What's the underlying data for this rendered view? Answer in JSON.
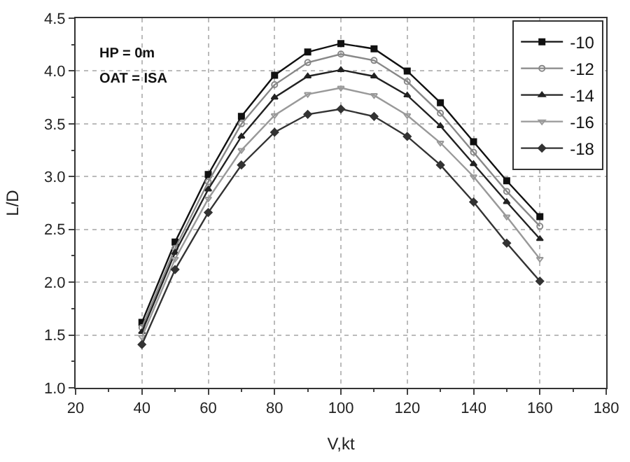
{
  "chart_data": {
    "type": "line",
    "xlabel": "V,kt",
    "ylabel": "L/D",
    "x": [
      40,
      50,
      60,
      70,
      80,
      90,
      100,
      110,
      120,
      130,
      140,
      150,
      160
    ],
    "series": [
      {
        "name": "-10",
        "color": "#111111",
        "marker": "square",
        "values": [
          1.62,
          2.38,
          3.02,
          3.57,
          3.96,
          4.18,
          4.26,
          4.21,
          4.0,
          3.7,
          3.33,
          2.96,
          2.62
        ]
      },
      {
        "name": "-12",
        "color": "#888888",
        "marker": "circle",
        "values": [
          1.57,
          2.32,
          2.95,
          3.5,
          3.87,
          4.08,
          4.16,
          4.1,
          3.9,
          3.6,
          3.23,
          2.86,
          2.53
        ]
      },
      {
        "name": "-14",
        "color": "#222222",
        "marker": "triangle",
        "values": [
          1.53,
          2.28,
          2.88,
          3.38,
          3.75,
          3.95,
          4.01,
          3.95,
          3.77,
          3.48,
          3.12,
          2.76,
          2.41
        ]
      },
      {
        "name": "-16",
        "color": "#999999",
        "marker": "triangle",
        "values": [
          1.48,
          2.22,
          2.79,
          3.25,
          3.58,
          3.78,
          3.84,
          3.77,
          3.58,
          3.32,
          3.0,
          2.62,
          2.22
        ]
      },
      {
        "name": "-18",
        "color": "#333333",
        "marker": "diamond",
        "values": [
          1.41,
          2.12,
          2.66,
          3.11,
          3.42,
          3.59,
          3.64,
          3.57,
          3.38,
          3.11,
          2.76,
          2.37,
          2.01
        ]
      }
    ],
    "annotations": [
      "HP = 0m",
      "OAT = ISA"
    ],
    "xlim": [
      20,
      180
    ],
    "xticks": [
      20,
      40,
      60,
      80,
      100,
      120,
      140,
      160,
      180
    ],
    "ylim": [
      1.0,
      4.5
    ],
    "yticks": [
      {
        "value": 1.0,
        "label": "1.0"
      },
      {
        "value": 1.5,
        "label": "1.5"
      },
      {
        "value": 2.0,
        "label": "2.0"
      },
      {
        "value": 2.5,
        "label": "2.5"
      },
      {
        "value": 3.0,
        "label": "3.0"
      },
      {
        "value": 3.5,
        "label": "3.5"
      },
      {
        "value": 4.0,
        "label": "4.0"
      },
      {
        "value": 4.5,
        "label": "4.5"
      }
    ],
    "grid": true,
    "legend": "top right",
    "line_style": "solid"
  }
}
